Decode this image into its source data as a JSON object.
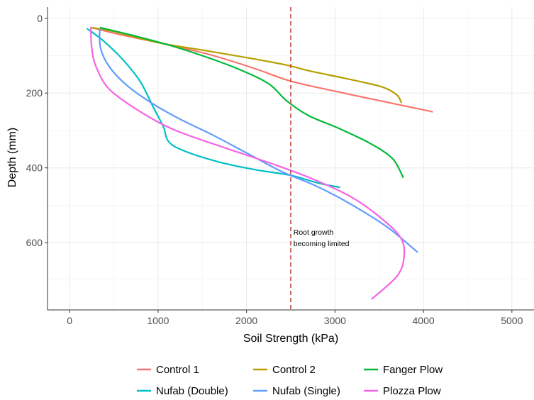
{
  "chart_data": {
    "type": "line",
    "xlabel": "Soil Strength (kPa)",
    "ylabel": "Depth (mm)",
    "xlim": [
      -250,
      5250
    ],
    "ylim": [
      -30,
      780
    ],
    "y_reversed": true,
    "x_ticks": [
      0,
      1000,
      2000,
      3000,
      4000,
      5000
    ],
    "x_tick_labels": [
      "0",
      "1000",
      "2000",
      "3000",
      "4000",
      "5000"
    ],
    "y_ticks": [
      0,
      200,
      400,
      600
    ],
    "y_tick_labels": [
      "0",
      "200",
      "400",
      "600"
    ],
    "grid": true,
    "legend_position": "bottom",
    "reference_line": {
      "x": 2500,
      "color": "#c0392b",
      "style": "dashed"
    },
    "annotation": {
      "lines": [
        "Root growth",
        "becoming limited"
      ],
      "x": 2530,
      "y": 600
    },
    "series": [
      {
        "name": "Control 1",
        "color": "#F8766D",
        "points": [
          [
            250,
            25
          ],
          [
            600,
            45
          ],
          [
            1100,
            70
          ],
          [
            1600,
            98
          ],
          [
            2100,
            135
          ],
          [
            2500,
            168
          ],
          [
            3000,
            195
          ],
          [
            3500,
            220
          ],
          [
            4100,
            250
          ]
        ]
      },
      {
        "name": "Control 2",
        "color": "#B79F00",
        "points": [
          [
            250,
            25
          ],
          [
            500,
            35
          ],
          [
            1000,
            65
          ],
          [
            1500,
            85
          ],
          [
            2000,
            105
          ],
          [
            2450,
            125
          ],
          [
            2700,
            140
          ],
          [
            3000,
            155
          ],
          [
            3300,
            170
          ],
          [
            3550,
            185
          ],
          [
            3700,
            205
          ],
          [
            3750,
            225
          ]
        ]
      },
      {
        "name": "Fanger Plow",
        "color": "#00BA38",
        "points": [
          [
            350,
            25
          ],
          [
            700,
            45
          ],
          [
            1100,
            70
          ],
          [
            1500,
            100
          ],
          [
            1900,
            135
          ],
          [
            2250,
            175
          ],
          [
            2450,
            220
          ],
          [
            2700,
            260
          ],
          [
            3050,
            295
          ],
          [
            3400,
            335
          ],
          [
            3650,
            375
          ],
          [
            3770,
            425
          ]
        ]
      },
      {
        "name": "Nufab (Double)",
        "color": "#00BFC4",
        "points": [
          [
            200,
            28
          ],
          [
            380,
            60
          ],
          [
            600,
            110
          ],
          [
            800,
            170
          ],
          [
            950,
            240
          ],
          [
            1060,
            290
          ],
          [
            1120,
            330
          ],
          [
            1300,
            355
          ],
          [
            1700,
            385
          ],
          [
            2100,
            405
          ],
          [
            2500,
            420
          ],
          [
            2800,
            440
          ],
          [
            3050,
            452
          ]
        ]
      },
      {
        "name": "Nufab (Single)",
        "color": "#619CFF",
        "points": [
          [
            340,
            28
          ],
          [
            350,
            80
          ],
          [
            450,
            130
          ],
          [
            650,
            180
          ],
          [
            950,
            230
          ],
          [
            1250,
            270
          ],
          [
            1600,
            310
          ],
          [
            2000,
            360
          ],
          [
            2400,
            410
          ],
          [
            2800,
            450
          ],
          [
            3200,
            500
          ],
          [
            3600,
            560
          ],
          [
            3930,
            625
          ]
        ]
      },
      {
        "name": "Plozza Plow",
        "color": "#F564E3",
        "points": [
          [
            240,
            25
          ],
          [
            250,
            80
          ],
          [
            300,
            130
          ],
          [
            450,
            190
          ],
          [
            800,
            250
          ],
          [
            1200,
            300
          ],
          [
            1800,
            350
          ],
          [
            2300,
            390
          ],
          [
            2750,
            430
          ],
          [
            3200,
            480
          ],
          [
            3550,
            540
          ],
          [
            3750,
            590
          ],
          [
            3780,
            640
          ],
          [
            3700,
            690
          ],
          [
            3420,
            750
          ]
        ]
      }
    ]
  }
}
